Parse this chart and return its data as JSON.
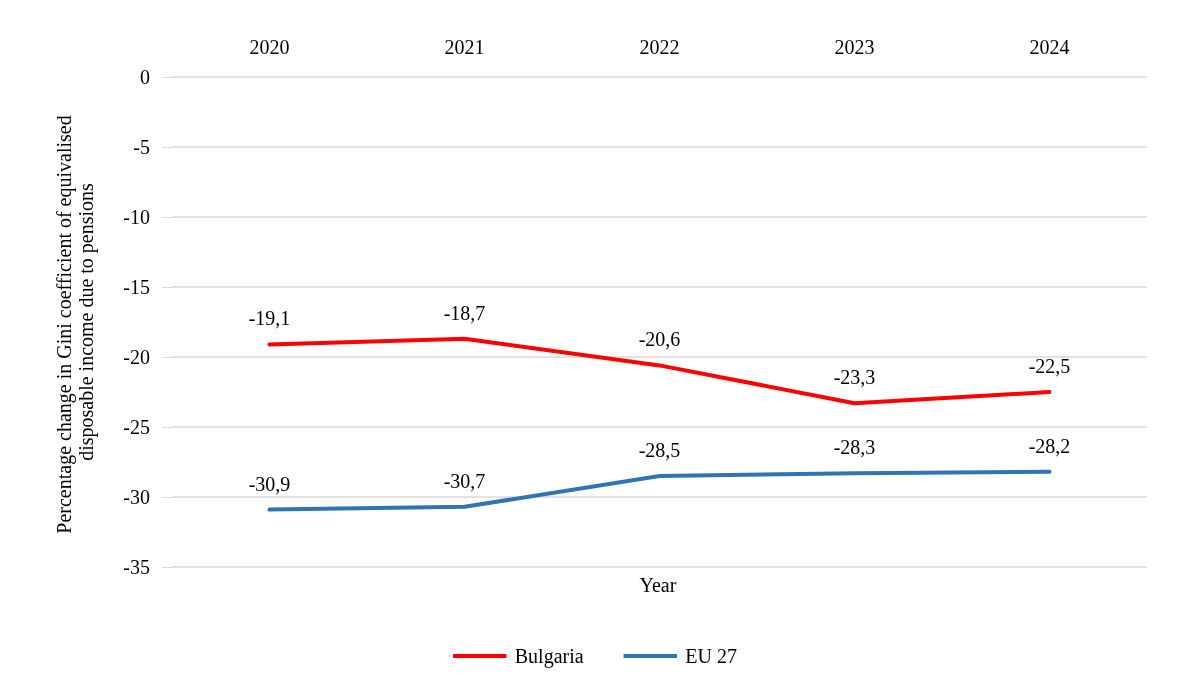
{
  "chart_data": {
    "type": "line",
    "xlabel": "Year",
    "ylabel": "Percentage change in Gini coefficient of equivalised disposable income due to pensions",
    "categories": [
      "2020",
      "2021",
      "2022",
      "2023",
      "2024"
    ],
    "series": [
      {
        "name": "Bulgaria",
        "color": "#ff0000",
        "values": [
          -19.1,
          -18.7,
          -20.6,
          -23.3,
          -22.5
        ],
        "value_labels": [
          "-19,1",
          "-18,7",
          "-20,6",
          "-23,3",
          "-22,5"
        ]
      },
      {
        "name": "EU 27",
        "color": "#2e75b6",
        "values": [
          -30.9,
          -30.7,
          -28.5,
          -28.3,
          -28.2
        ],
        "value_labels": [
          "-30,9",
          "-30,7",
          "-28,5",
          "-28,3",
          "-28,2"
        ]
      }
    ],
    "ylim": [
      -35,
      0
    ],
    "yticks": [
      -35,
      -30,
      -25,
      -20,
      -15,
      -10,
      -5,
      0
    ],
    "grid": "y",
    "legend": "bottom",
    "marker": "none",
    "line_style": "solid"
  }
}
